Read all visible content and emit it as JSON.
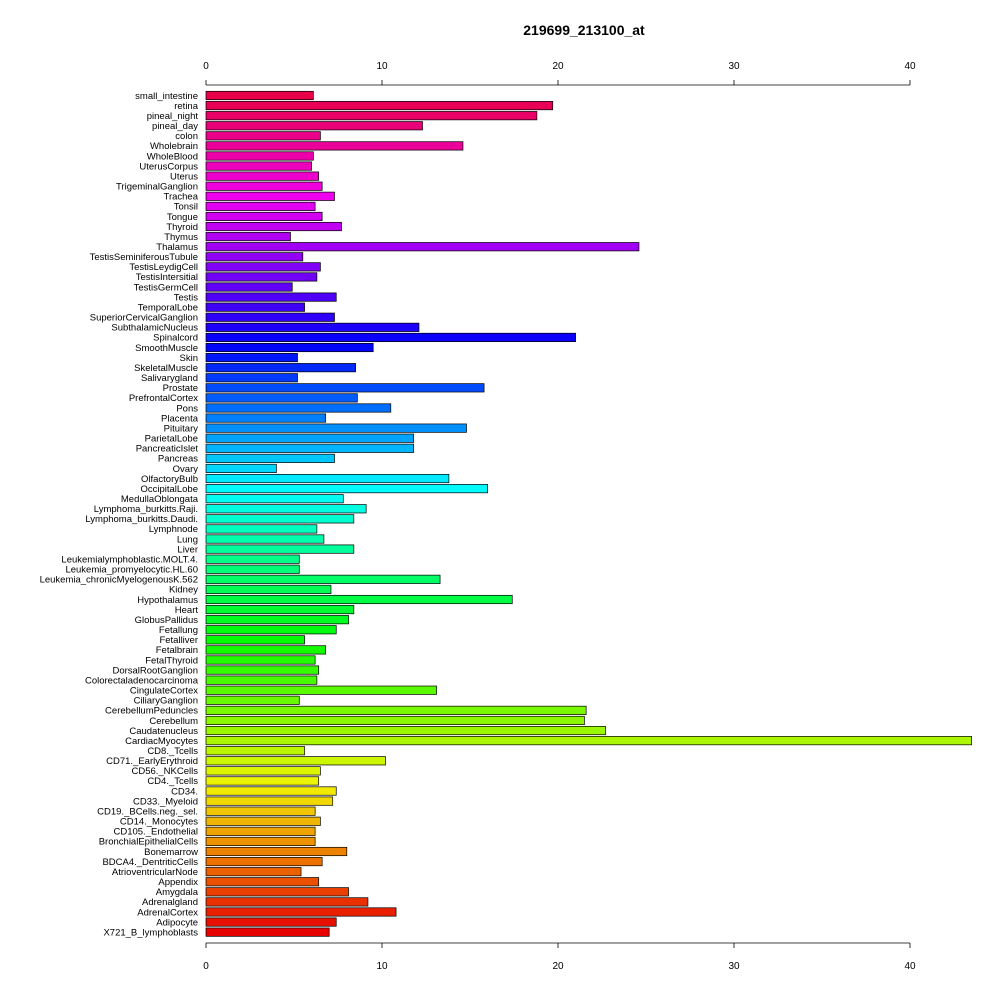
{
  "chart_data": {
    "type": "bar",
    "orientation": "horizontal",
    "title": "219699_213100_at",
    "xlabel": "",
    "ylabel": "",
    "xlim": [
      0,
      43.5
    ],
    "xticks": [
      0,
      10,
      20,
      30,
      40
    ],
    "axes": "top-and-bottom",
    "grid": false,
    "legend": "none",
    "categories": [
      "small_intestine",
      "retina",
      "pineal_night",
      "pineal_day",
      "colon",
      "Wholebrain",
      "WholeBlood",
      "UterusCorpus",
      "Uterus",
      "TrigeminalGanglion",
      "Trachea",
      "Tonsil",
      "Tongue",
      "Thyroid",
      "Thymus",
      "Thalamus",
      "TestisSeminiferousTubule",
      "TestisLeydigCell",
      "TestisIntersitial",
      "TestisGermCell",
      "Testis",
      "TemporalLobe",
      "SuperiorCervicalGanglion",
      "SubthalamicNucleus",
      "Spinalcord",
      "SmoothMuscle",
      "Skin",
      "SkeletalMuscle",
      "Salivarygland",
      "Prostate",
      "PrefrontalCortex",
      "Pons",
      "Placenta",
      "Pituitary",
      "ParietalLobe",
      "PancreaticIslet",
      "Pancreas",
      "Ovary",
      "OlfactoryBulb",
      "OccipitalLobe",
      "MedullaOblongata",
      "Lymphoma_burkitts.Raji.",
      "Lymphoma_burkitts.Daudi.",
      "Lymphnode",
      "Lung",
      "Liver",
      "Leukemialymphoblastic.MOLT.4.",
      "Leukemia_promyelocytic.HL.60",
      "Leukemia_chronicMyelogenousK.562",
      "Kidney",
      "Hypothalamus",
      "Heart",
      "GlobusPallidus",
      "Fetallung",
      "Fetalliver",
      "Fetalbrain",
      "FetalThyroid",
      "DorsalRootGanglion",
      "Colorectaladenocarcinoma",
      "CingulateCortex",
      "CiliaryGanglion",
      "CerebellumPeduncles",
      "Cerebellum",
      "Caudatenucleus",
      "CardiacMyocytes",
      "CD8._Tcells",
      "CD71._EarlyErythroid",
      "CD56._NKCells",
      "CD4._Tcells",
      "CD34.",
      "CD33._Myeloid",
      "CD19._BCells.neg._sel.",
      "CD14._Monocytes",
      "CD105._Endothelial",
      "BronchialEpithelialCells",
      "Bonemarrow",
      "BDCA4._DentriticCells",
      "AtrioventricularNode",
      "Appendix",
      "Amygdala",
      "Adrenalgland",
      "AdrenalCortex",
      "Adipocyte",
      "X721_B_lymphoblasts"
    ],
    "values": [
      6.1,
      19.7,
      18.8,
      12.3,
      6.5,
      14.6,
      6.1,
      6.0,
      6.4,
      6.6,
      7.3,
      6.2,
      6.6,
      7.7,
      4.8,
      24.6,
      5.5,
      6.5,
      6.3,
      4.9,
      7.4,
      5.6,
      7.3,
      12.1,
      21.0,
      9.5,
      5.2,
      8.5,
      5.2,
      15.8,
      8.6,
      10.5,
      6.8,
      14.8,
      11.8,
      11.8,
      7.3,
      4.0,
      13.8,
      16.0,
      7.8,
      9.1,
      8.4,
      6.3,
      6.7,
      8.4,
      5.3,
      5.3,
      13.3,
      7.1,
      17.4,
      8.4,
      8.1,
      7.4,
      5.6,
      6.8,
      6.2,
      6.4,
      6.3,
      13.1,
      5.3,
      21.6,
      21.5,
      22.7,
      43.5,
      5.6,
      10.2,
      6.5,
      6.4,
      7.4,
      7.2,
      6.2,
      6.5,
      6.2,
      6.2,
      8.0,
      6.6,
      5.4,
      6.4,
      8.1,
      9.2,
      10.8,
      7.4,
      7.0
    ]
  }
}
